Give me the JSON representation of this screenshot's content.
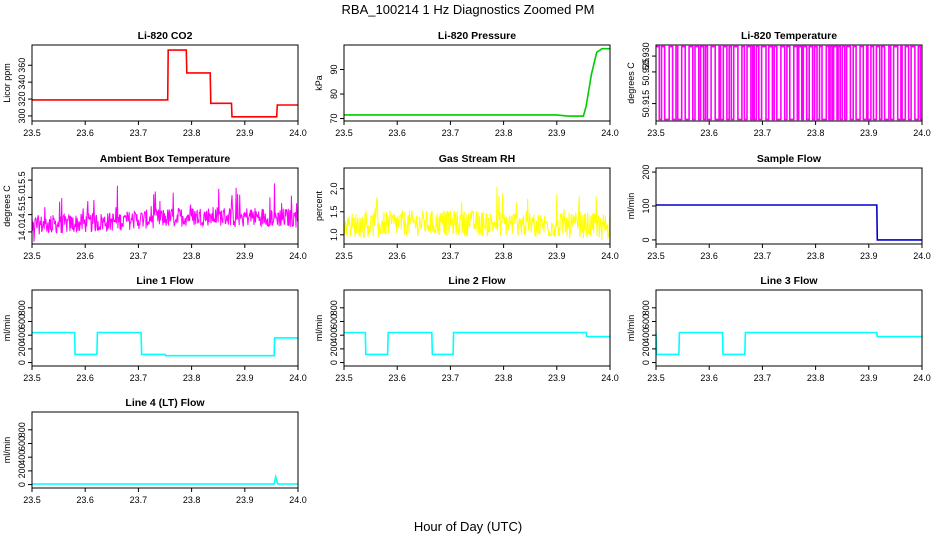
{
  "figure": {
    "title": "RBA_100214  1 Hz Diagnostics Zoomed PM",
    "xlabel": "Hour of Day (UTC)"
  },
  "chart_data": [
    {
      "type": "line",
      "title": "Li-820 CO2",
      "ylabel": "Licor ppm",
      "color": "#ff0000",
      "xlim": [
        23.5,
        24.0
      ],
      "ylim": [
        294,
        384
      ],
      "xticks": [
        "23.5",
        "23.6",
        "23.7",
        "23.8",
        "23.9",
        "24.0"
      ],
      "yticks": [
        300,
        320,
        340,
        360
      ],
      "x": [
        23.5,
        23.755,
        23.756,
        23.79,
        23.791,
        23.835,
        23.836,
        23.875,
        23.876,
        23.96,
        23.961,
        24.0
      ],
      "y": [
        319,
        319,
        378,
        378,
        351,
        351,
        315,
        315,
        299,
        299,
        313,
        313
      ]
    },
    {
      "type": "line",
      "title": "Li-820 Pressure",
      "ylabel": "kPa",
      "color": "#00cc00",
      "xlim": [
        23.5,
        24.0
      ],
      "ylim": [
        69,
        100
      ],
      "xticks": [
        "23.5",
        "23.6",
        "23.7",
        "23.8",
        "23.9",
        "24.0"
      ],
      "yticks": [
        70,
        80,
        90
      ],
      "x": [
        23.5,
        23.9,
        23.92,
        23.95,
        23.955,
        23.965,
        23.975,
        23.985,
        24.0
      ],
      "y": [
        71.5,
        71.5,
        71,
        71,
        75,
        88,
        97,
        98.5,
        98.5
      ]
    },
    {
      "type": "line",
      "title": "Li-820 Temperature",
      "ylabel": "degrees C",
      "color": "#ff00ff",
      "xlim": [
        23.5,
        24.0
      ],
      "ylim": [
        50.9095,
        50.9335
      ],
      "xticks": [
        "23.5",
        "23.6",
        "23.7",
        "23.8",
        "23.9",
        "24.0"
      ],
      "yticks": [
        50.915,
        50.925,
        50.93
      ],
      "ytick_labels": [
        "50.915",
        "50.925",
        "50.930"
      ],
      "x": [
        23.5,
        24.0
      ],
      "y": [
        50.91,
        50.933
      ],
      "note_pattern": "oscillating"
    },
    {
      "type": "line",
      "title": "Ambient Box Temperature",
      "ylabel": "degrees C",
      "color": "#ff00ff",
      "xlim": [
        23.5,
        24.0
      ],
      "ylim": [
        13.65,
        15.85
      ],
      "xticks": [
        "23.5",
        "23.6",
        "23.7",
        "23.8",
        "23.9",
        "24.0"
      ],
      "yticks": [
        14.0,
        14.5,
        15.0,
        15.5
      ],
      "ytick_labels": [
        "14.0",
        "14.5",
        "15.0",
        "15.5"
      ],
      "x": [
        23.5,
        23.6,
        23.7,
        23.8,
        23.9,
        24.0
      ],
      "y": [
        14.2,
        14.25,
        14.35,
        14.45,
        14.45,
        14.4
      ]
    },
    {
      "type": "line",
      "title": "Gas Stream RH",
      "ylabel": "percent",
      "color": "#ffff00",
      "xlim": [
        23.5,
        24.0
      ],
      "ylim": [
        0.8,
        2.45
      ],
      "xticks": [
        "23.5",
        "23.6",
        "23.7",
        "23.8",
        "23.9",
        "24.0"
      ],
      "yticks": [
        1.0,
        1.5,
        2.0
      ],
      "ytick_labels": [
        "1.0",
        "1.5",
        "2.0"
      ],
      "x": [
        23.5,
        23.6,
        23.7,
        23.8,
        23.9,
        24.0
      ],
      "y": [
        1.2,
        1.25,
        1.25,
        1.25,
        1.2,
        1.2
      ]
    },
    {
      "type": "line",
      "title": "Sample Flow",
      "ylabel": "ml/min",
      "color": "#0000cc",
      "xlim": [
        23.5,
        24.0
      ],
      "ylim": [
        -12,
        212
      ],
      "xticks": [
        "23.5",
        "23.6",
        "23.7",
        "23.8",
        "23.9",
        "24.0"
      ],
      "yticks": [
        0,
        100,
        200
      ],
      "x": [
        23.5,
        23.915,
        23.916,
        24.0
      ],
      "y": [
        103,
        103,
        0,
        0
      ]
    },
    {
      "type": "line",
      "title": "Line 1 Flow",
      "ylabel": "ml/min",
      "color": "#00ffff",
      "xlim": [
        23.5,
        24.0
      ],
      "ylim": [
        -50,
        1060
      ],
      "xticks": [
        "23.5",
        "23.6",
        "23.7",
        "23.8",
        "23.9",
        "24.0"
      ],
      "yticks": [
        0,
        200,
        400,
        600,
        800
      ],
      "x": [
        23.5,
        23.58,
        23.581,
        23.622,
        23.623,
        23.705,
        23.706,
        23.75,
        23.751,
        23.955,
        23.956,
        24.0
      ],
      "y": [
        440,
        440,
        120,
        120,
        440,
        440,
        120,
        120,
        100,
        100,
        360,
        360
      ]
    },
    {
      "type": "line",
      "title": "Line 2 Flow",
      "ylabel": "ml/min",
      "color": "#00ffff",
      "xlim": [
        23.5,
        24.0
      ],
      "ylim": [
        -50,
        1060
      ],
      "xticks": [
        "23.5",
        "23.6",
        "23.7",
        "23.8",
        "23.9",
        "24.0"
      ],
      "yticks": [
        0,
        200,
        400,
        600,
        800
      ],
      "x": [
        23.5,
        23.54,
        23.541,
        23.582,
        23.583,
        23.665,
        23.666,
        23.705,
        23.706,
        23.955,
        23.956,
        24.0
      ],
      "y": [
        440,
        440,
        120,
        120,
        440,
        440,
        120,
        120,
        440,
        440,
        380,
        380
      ]
    },
    {
      "type": "line",
      "title": "Line 3 Flow",
      "ylabel": "ml/min",
      "color": "#00ffff",
      "xlim": [
        23.5,
        24.0
      ],
      "ylim": [
        -50,
        1060
      ],
      "xticks": [
        "23.5",
        "23.6",
        "23.7",
        "23.8",
        "23.9",
        "24.0"
      ],
      "yticks": [
        0,
        200,
        400,
        600,
        800
      ],
      "x": [
        23.5,
        23.5,
        23.501,
        23.543,
        23.544,
        23.625,
        23.626,
        23.667,
        23.668,
        23.915,
        23.916,
        24.0
      ],
      "y": [
        440,
        440,
        120,
        120,
        440,
        440,
        120,
        120,
        440,
        440,
        380,
        380
      ]
    },
    {
      "type": "line",
      "title": "Line 4 (LT) Flow",
      "ylabel": "ml/min",
      "color": "#00ffff",
      "xlim": [
        23.5,
        24.0
      ],
      "ylim": [
        -50,
        1060
      ],
      "xticks": [
        "23.5",
        "23.6",
        "23.7",
        "23.8",
        "23.9",
        "24.0"
      ],
      "yticks": [
        0,
        200,
        400,
        600,
        800
      ],
      "x": [
        23.5,
        23.955,
        23.958,
        23.962,
        24.0
      ],
      "y": [
        8,
        8,
        110,
        8,
        8
      ]
    }
  ]
}
